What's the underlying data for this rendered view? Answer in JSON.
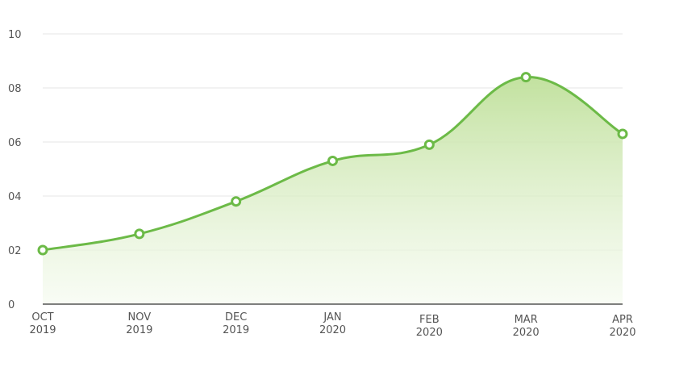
{
  "chart_data": {
    "type": "area",
    "title": "",
    "xlabel": "",
    "ylabel": "",
    "categories": [
      [
        "OCT",
        "2019"
      ],
      [
        "NOV",
        "2019"
      ],
      [
        "DEC",
        "2019"
      ],
      [
        "JAN",
        "2020"
      ],
      [
        "FEB",
        "2020"
      ],
      [
        "MAR",
        "2020"
      ],
      [
        "APR",
        "2020"
      ]
    ],
    "values": [
      2.0,
      2.6,
      3.8,
      5.3,
      5.9,
      8.4,
      6.3
    ],
    "ylim": [
      0,
      10
    ],
    "yticks": [
      0,
      2,
      4,
      6,
      8,
      10
    ],
    "ytick_labels": [
      "0",
      "02",
      "04",
      "06",
      "08",
      "10"
    ],
    "grid": true,
    "legend": "none",
    "colors": {
      "line": "#6cba47",
      "fill_top": "#bfe09a",
      "fill_bottom": "#f4faee",
      "marker_fill": "#ffffff"
    }
  }
}
